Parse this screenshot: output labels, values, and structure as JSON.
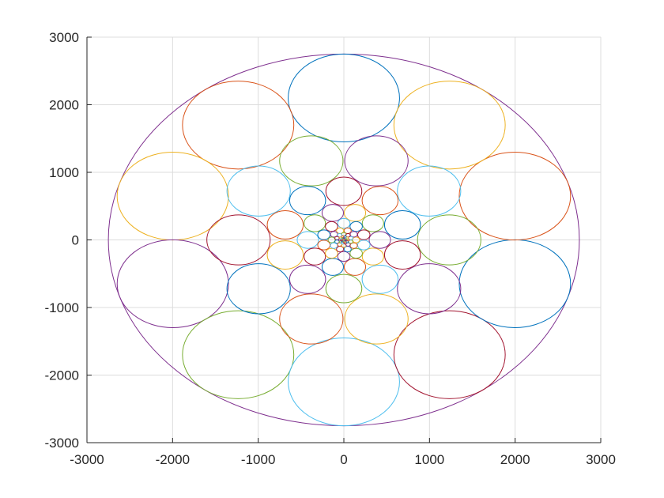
{
  "chart_data": {
    "type": "scatter",
    "title": "",
    "xlabel": "",
    "ylabel": "",
    "xlim": [
      -3000,
      3000
    ],
    "ylim": [
      -3000,
      3000
    ],
    "grid": true,
    "xticks": [
      "-3000",
      "-2000",
      "-1000",
      "0",
      "1000",
      "2000",
      "3000"
    ],
    "yticks": [
      "-3000",
      "-2000",
      "-1000",
      "0",
      "1000",
      "2000",
      "3000"
    ],
    "series_colors": [
      "#0072BD",
      "#D95319",
      "#EDB120",
      "#7E2F8E",
      "#77AC30",
      "#4DBEEE",
      "#A2142F"
    ],
    "outer_circle": {
      "cx": 0,
      "cy": 0,
      "r": 2750,
      "color": "#7E2F8E"
    },
    "spiral": {
      "description_of_marks": "circles arranged in spiral rings converging to origin",
      "rings": [
        {
          "count": 10,
          "center_radius": 2100,
          "r": 650
        },
        {
          "count": 10,
          "center_radius": 1230,
          "r": 370
        },
        {
          "count": 10,
          "center_radius": 720,
          "r": 210
        },
        {
          "count": 10,
          "center_radius": 420,
          "r": 125
        },
        {
          "count": 10,
          "center_radius": 245,
          "r": 72
        },
        {
          "count": 10,
          "center_radius": 143,
          "r": 42
        },
        {
          "count": 10,
          "center_radius": 84,
          "r": 25
        },
        {
          "count": 10,
          "center_radius": 49,
          "r": 14
        },
        {
          "count": 10,
          "center_radius": 29,
          "r": 8
        },
        {
          "count": 10,
          "center_radius": 17,
          "r": 5
        }
      ]
    }
  }
}
